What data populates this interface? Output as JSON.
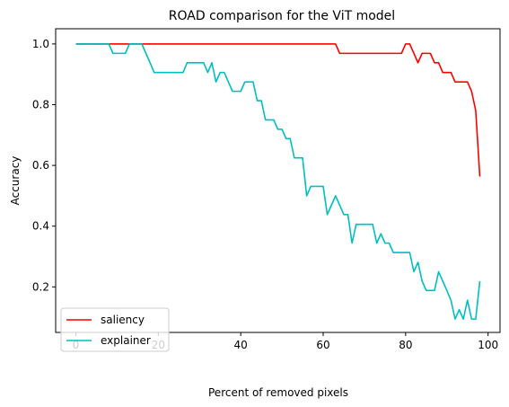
{
  "chart_data": {
    "type": "line",
    "title": "ROAD comparison for the ViT model",
    "xlabel": "Percent of removed pixels",
    "ylabel": "Accuracy",
    "xlim": [
      -4.9,
      102.9
    ],
    "ylim": [
      0.05,
      1.05
    ],
    "xticks": [
      0,
      20,
      40,
      60,
      80,
      100
    ],
    "yticks": [
      0.2,
      0.4,
      0.6,
      0.8,
      1.0
    ],
    "xtick_labels": [
      "0",
      "20",
      "40",
      "60",
      "80",
      "100"
    ],
    "ytick_labels": [
      "0.2",
      "0.4",
      "0.6",
      "0.8",
      "1.0"
    ],
    "grid": false,
    "legend": "lower-left",
    "x": [
      0,
      1,
      2,
      3,
      4,
      5,
      6,
      7,
      8,
      9,
      10,
      11,
      12,
      13,
      14,
      15,
      16,
      17,
      18,
      19,
      20,
      21,
      22,
      23,
      24,
      25,
      26,
      27,
      28,
      29,
      30,
      31,
      32,
      33,
      34,
      35,
      36,
      37,
      38,
      39,
      40,
      41,
      42,
      43,
      44,
      45,
      46,
      47,
      48,
      49,
      50,
      51,
      52,
      53,
      54,
      55,
      56,
      57,
      58,
      59,
      60,
      61,
      62,
      63,
      64,
      65,
      66,
      67,
      68,
      69,
      70,
      71,
      72,
      73,
      74,
      75,
      76,
      77,
      78,
      79,
      80,
      81,
      82,
      83,
      84,
      85,
      86,
      87,
      88,
      89,
      90,
      91,
      92,
      93,
      94,
      95,
      96,
      97,
      98
    ],
    "series": [
      {
        "name": "saliency",
        "color": "#ff0000",
        "values": [
          1.0,
          1.0,
          1.0,
          1.0,
          1.0,
          1.0,
          1.0,
          1.0,
          1.0,
          1.0,
          1.0,
          1.0,
          1.0,
          1.0,
          1.0,
          1.0,
          1.0,
          1.0,
          1.0,
          1.0,
          1.0,
          1.0,
          1.0,
          1.0,
          1.0,
          1.0,
          1.0,
          1.0,
          1.0,
          1.0,
          1.0,
          1.0,
          1.0,
          1.0,
          1.0,
          1.0,
          1.0,
          1.0,
          1.0,
          1.0,
          1.0,
          1.0,
          1.0,
          1.0,
          1.0,
          1.0,
          1.0,
          1.0,
          1.0,
          1.0,
          1.0,
          1.0,
          1.0,
          1.0,
          1.0,
          1.0,
          1.0,
          1.0,
          1.0,
          1.0,
          1.0,
          1.0,
          1.0,
          1.0,
          0.969,
          0.969,
          0.969,
          0.969,
          0.969,
          0.969,
          0.969,
          0.969,
          0.969,
          0.969,
          0.969,
          0.969,
          0.969,
          0.969,
          0.969,
          0.969,
          1.0,
          1.0,
          0.969,
          0.938,
          0.969,
          0.969,
          0.969,
          0.938,
          0.938,
          0.906,
          0.906,
          0.906,
          0.875,
          0.875,
          0.875,
          0.875,
          0.844,
          0.781,
          0.563
        ]
      },
      {
        "name": "explainer",
        "color": "#00bfbf",
        "values": [
          1.0,
          1.0,
          1.0,
          1.0,
          1.0,
          1.0,
          1.0,
          1.0,
          1.0,
          0.969,
          0.969,
          0.969,
          0.969,
          1.0,
          1.0,
          1.0,
          1.0,
          0.969,
          0.938,
          0.906,
          0.906,
          0.906,
          0.906,
          0.906,
          0.906,
          0.906,
          0.906,
          0.938,
          0.938,
          0.938,
          0.938,
          0.938,
          0.906,
          0.938,
          0.875,
          0.906,
          0.906,
          0.875,
          0.844,
          0.844,
          0.844,
          0.875,
          0.875,
          0.875,
          0.813,
          0.813,
          0.75,
          0.75,
          0.75,
          0.719,
          0.719,
          0.688,
          0.688,
          0.625,
          0.625,
          0.625,
          0.5,
          0.531,
          0.531,
          0.531,
          0.531,
          0.438,
          0.469,
          0.5,
          0.469,
          0.438,
          0.438,
          0.344,
          0.406,
          0.406,
          0.406,
          0.406,
          0.406,
          0.344,
          0.375,
          0.344,
          0.344,
          0.313,
          0.313,
          0.313,
          0.313,
          0.313,
          0.25,
          0.281,
          0.219,
          0.188,
          0.188,
          0.188,
          0.25,
          0.219,
          0.188,
          0.156,
          0.094,
          0.125,
          0.094,
          0.156,
          0.094,
          0.094,
          0.219
        ]
      }
    ]
  }
}
